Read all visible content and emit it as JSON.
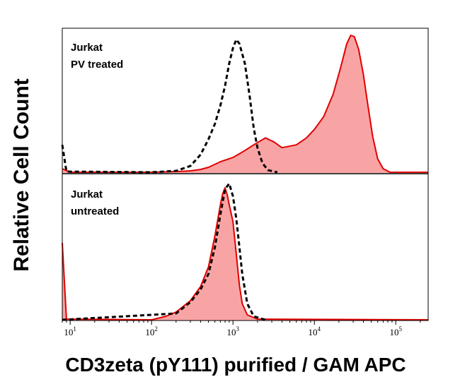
{
  "chart_data": {
    "type": "area",
    "title": "",
    "ylabel": "Relative Cell Count",
    "xlabel": "CD3zeta (pY111) purified / GAM APC",
    "x_scale": "log",
    "xlim": [
      8,
      250000
    ],
    "x_ticks": [
      {
        "value": 10,
        "base": "10",
        "exp": "1"
      },
      {
        "value": 100,
        "base": "10",
        "exp": "2"
      },
      {
        "value": 1000,
        "base": "10",
        "exp": "3"
      },
      {
        "value": 10000,
        "base": "10",
        "exp": "4"
      },
      {
        "value": 100000,
        "base": "10",
        "exp": "5"
      }
    ],
    "grid": false,
    "colors": {
      "filled_fill": "#f9a4a4",
      "filled_line": "#e00000",
      "dashed_line": "#000000"
    },
    "panels": [
      {
        "label_lines": [
          "Jurkat",
          "PV treated"
        ],
        "ylim": [
          0,
          100
        ],
        "series": [
          {
            "style": "filled",
            "points": [
              [
                8,
                3
              ],
              [
                10,
                0.5
              ],
              [
                100,
                0.5
              ],
              [
                200,
                1
              ],
              [
                300,
                1.5
              ],
              [
                400,
                2.5
              ],
              [
                500,
                4
              ],
              [
                700,
                8
              ],
              [
                1000,
                11
              ],
              [
                1400,
                16
              ],
              [
                1800,
                20
              ],
              [
                2500,
                25
              ],
              [
                3200,
                22
              ],
              [
                4000,
                18
              ],
              [
                6000,
                20
              ],
              [
                8000,
                25
              ],
              [
                10000,
                31
              ],
              [
                13000,
                40
              ],
              [
                17000,
                56
              ],
              [
                21000,
                75
              ],
              [
                25000,
                92
              ],
              [
                28000,
                98
              ],
              [
                31000,
                97
              ],
              [
                35000,
                88
              ],
              [
                40000,
                70
              ],
              [
                45000,
                50
              ],
              [
                52000,
                26
              ],
              [
                60000,
                10
              ],
              [
                70000,
                3
              ],
              [
                85000,
                0.5
              ],
              [
                250000,
                0.5
              ]
            ]
          },
          {
            "style": "dashed",
            "points": [
              [
                8,
                20
              ],
              [
                9,
                1
              ],
              [
                100,
                0.5
              ],
              [
                200,
                1.5
              ],
              [
                300,
                5
              ],
              [
                400,
                13
              ],
              [
                500,
                24
              ],
              [
                600,
                35
              ],
              [
                700,
                48
              ],
              [
                800,
                62
              ],
              [
                900,
                78
              ],
              [
                1000,
                89
              ],
              [
                1100,
                95
              ],
              [
                1200,
                92
              ],
              [
                1400,
                78
              ],
              [
                1600,
                55
              ],
              [
                1800,
                32
              ],
              [
                2000,
                18
              ],
              [
                2300,
                7
              ],
              [
                2700,
                2
              ],
              [
                3500,
                0.5
              ]
            ]
          }
        ]
      },
      {
        "label_lines": [
          "Jurkat",
          "untreated"
        ],
        "ylim": [
          0,
          100
        ],
        "series": [
          {
            "style": "filled",
            "points": [
              [
                8,
                55
              ],
              [
                9,
                1
              ],
              [
                100,
                0.5
              ],
              [
                150,
                3
              ],
              [
                200,
                6
              ],
              [
                300,
                14
              ],
              [
                400,
                24
              ],
              [
                500,
                38
              ],
              [
                600,
                60
              ],
              [
                700,
                82
              ],
              [
                750,
                90
              ],
              [
                800,
                94
              ],
              [
                850,
                89
              ],
              [
                900,
                82
              ],
              [
                1000,
                70
              ],
              [
                1100,
                47
              ],
              [
                1200,
                25
              ],
              [
                1300,
                12
              ],
              [
                1500,
                4
              ],
              [
                2000,
                1
              ],
              [
                250000,
                0.5
              ]
            ]
          },
          {
            "style": "dashed",
            "points": [
              [
                8,
                0.5
              ],
              [
                200,
                5
              ],
              [
                300,
                13
              ],
              [
                400,
                22
              ],
              [
                500,
                33
              ],
              [
                600,
                52
              ],
              [
                700,
                75
              ],
              [
                800,
                93
              ],
              [
                900,
                97
              ],
              [
                1000,
                88
              ],
              [
                1100,
                72
              ],
              [
                1200,
                52
              ],
              [
                1300,
                33
              ],
              [
                1500,
                12
              ],
              [
                1800,
                3
              ],
              [
                2500,
                0.5
              ]
            ]
          }
        ]
      }
    ]
  }
}
